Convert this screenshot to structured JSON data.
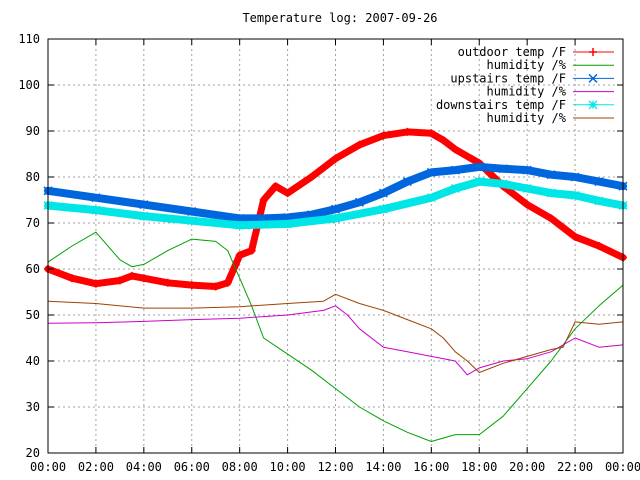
{
  "chart_data": {
    "type": "line",
    "title": "Temperature log: 2007-09-26",
    "xlabel": "",
    "ylabel": "",
    "ylim": [
      20,
      110
    ],
    "xlim": [
      0,
      24
    ],
    "grid": true,
    "legend_position": "top-right",
    "x_ticks": [
      "00:00",
      "02:00",
      "04:00",
      "06:00",
      "08:00",
      "10:00",
      "12:00",
      "14:00",
      "16:00",
      "18:00",
      "20:00",
      "22:00",
      "00:00"
    ],
    "y_ticks": [
      "20",
      "30",
      "40",
      "50",
      "60",
      "70",
      "80",
      "90",
      "100",
      "110"
    ],
    "series": [
      {
        "name": "outdoor temp /F",
        "color": "#ff0000",
        "marker": "plus",
        "x": [
          0,
          1,
          2,
          3,
          3.5,
          4,
          5,
          6,
          7,
          7.5,
          8,
          8.5,
          9,
          9.5,
          10,
          11,
          12,
          13,
          14,
          15,
          16,
          16.5,
          17,
          18,
          19,
          20,
          21,
          22,
          23,
          24
        ],
        "y": [
          60,
          58,
          56.8,
          57.5,
          58.5,
          58,
          57,
          56.5,
          56.2,
          57,
          63,
          64,
          75,
          78,
          76.5,
          80,
          84,
          87,
          89,
          89.8,
          89.5,
          88,
          86,
          83,
          78,
          74,
          71,
          67,
          65,
          62.5
        ]
      },
      {
        "name": "humidity /%",
        "color": "#00a000",
        "marker": "none",
        "x": [
          0,
          1,
          2,
          3,
          3.5,
          4,
          5,
          6,
          7,
          7.5,
          8,
          8.5,
          9,
          10,
          11,
          12,
          13,
          14,
          15,
          16,
          17,
          18,
          19,
          20,
          21,
          22,
          23,
          24
        ],
        "y": [
          61.5,
          65,
          68,
          62,
          60.5,
          61,
          64,
          66.5,
          66,
          64,
          58,
          52,
          45,
          41.5,
          38,
          34,
          30,
          27,
          24.5,
          22.5,
          24,
          24,
          28,
          34,
          40,
          47,
          52,
          56.5
        ]
      },
      {
        "name": "upstairs temp /F",
        "color": "#0066dd",
        "marker": "x",
        "x": [
          0,
          2,
          4,
          6,
          8,
          9,
          10,
          11,
          12,
          13,
          14,
          15,
          16,
          17,
          18,
          19,
          20,
          21,
          22,
          23,
          24
        ],
        "y": [
          77,
          75.5,
          74,
          72.5,
          71,
          71,
          71.2,
          71.8,
          73,
          74.5,
          76.5,
          79,
          81,
          81.5,
          82.2,
          81.8,
          81.5,
          80.5,
          80,
          79,
          78
        ]
      },
      {
        "name": "humidity /%",
        "color": "#cc00cc",
        "marker": "none",
        "x": [
          0,
          2,
          4,
          6,
          8,
          10,
          11.5,
          12,
          12.5,
          13,
          14,
          15,
          16,
          17,
          17.5,
          18,
          19,
          20,
          21,
          22,
          23,
          24
        ],
        "y": [
          48.2,
          48.3,
          48.6,
          49,
          49.3,
          50,
          51,
          52,
          50,
          47,
          43,
          42,
          41,
          40,
          37,
          38.5,
          40,
          40.5,
          42,
          45,
          43,
          43.5
        ]
      },
      {
        "name": "downstairs temp /F",
        "color": "#00e5e5",
        "marker": "star",
        "x": [
          0,
          2,
          4,
          6,
          8,
          10,
          12,
          14,
          16,
          17,
          18,
          19,
          20,
          21,
          22,
          23,
          24
        ],
        "y": [
          73.8,
          72.8,
          71.5,
          70.5,
          69.5,
          69.8,
          71,
          73,
          75.5,
          77.5,
          79,
          78.5,
          77.5,
          76.5,
          76,
          74.8,
          73.8
        ]
      },
      {
        "name": "humidity /%",
        "color": "#a04000",
        "marker": "none",
        "x": [
          0,
          2,
          4,
          6,
          8,
          10,
          11.5,
          12,
          13,
          14,
          15,
          16,
          16.5,
          17,
          17.5,
          18,
          19,
          20,
          21,
          21.5,
          22,
          23,
          24
        ],
        "y": [
          53,
          52.5,
          51.5,
          51.5,
          51.8,
          52.5,
          53,
          54.5,
          52.5,
          51,
          49,
          47,
          45,
          42,
          40,
          37.5,
          39.5,
          41,
          42.5,
          43,
          48.5,
          48,
          48.5
        ]
      }
    ]
  }
}
